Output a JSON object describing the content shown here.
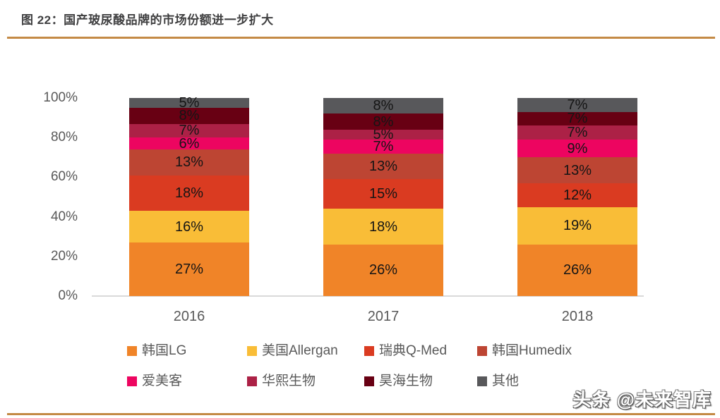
{
  "title": "图 22：国产玻尿酸品牌的市场份额进一步扩大",
  "watermark": "头条 @未来智库",
  "colors": {
    "rule": "#c48a45",
    "axis_text": "#595959",
    "axis_line": "#d9d9d9",
    "segment_label_text": "#151515",
    "title_text": "#3f3f40"
  },
  "chart_data": {
    "type": "bar",
    "stacked": true,
    "title": "国产玻尿酸品牌的市场份额进一步扩大",
    "categories": [
      "2016",
      "2017",
      "2018"
    ],
    "series": [
      {
        "name": "韩国LG",
        "color": "#f08428",
        "values": [
          27,
          26,
          26
        ]
      },
      {
        "name": "美国Allergan",
        "color": "#f9bd37",
        "values": [
          16,
          18,
          19
        ]
      },
      {
        "name": "瑞典Q-Med",
        "color": "#da3b21",
        "values": [
          18,
          15,
          12
        ]
      },
      {
        "name": "韩国Humedix",
        "color": "#bd4533",
        "values": [
          13,
          13,
          13
        ]
      },
      {
        "name": "爱美客",
        "color": "#ed0560",
        "values": [
          6,
          7,
          9
        ]
      },
      {
        "name": "华熙生物",
        "color": "#ac2146",
        "values": [
          7,
          5,
          7
        ]
      },
      {
        "name": "昊海生物",
        "color": "#680013",
        "values": [
          8,
          8,
          7
        ]
      },
      {
        "name": "其他",
        "color": "#58585b",
        "values": [
          5,
          8,
          7
        ]
      }
    ],
    "value_suffix": "%",
    "y_axis": {
      "ticks": [
        "0%",
        "20%",
        "40%",
        "60%",
        "80%",
        "100%"
      ],
      "tick_values": [
        0,
        20,
        40,
        60,
        80,
        100
      ]
    },
    "ylim": [
      0,
      100
    ],
    "grid": false,
    "legend_position": "bottom"
  }
}
